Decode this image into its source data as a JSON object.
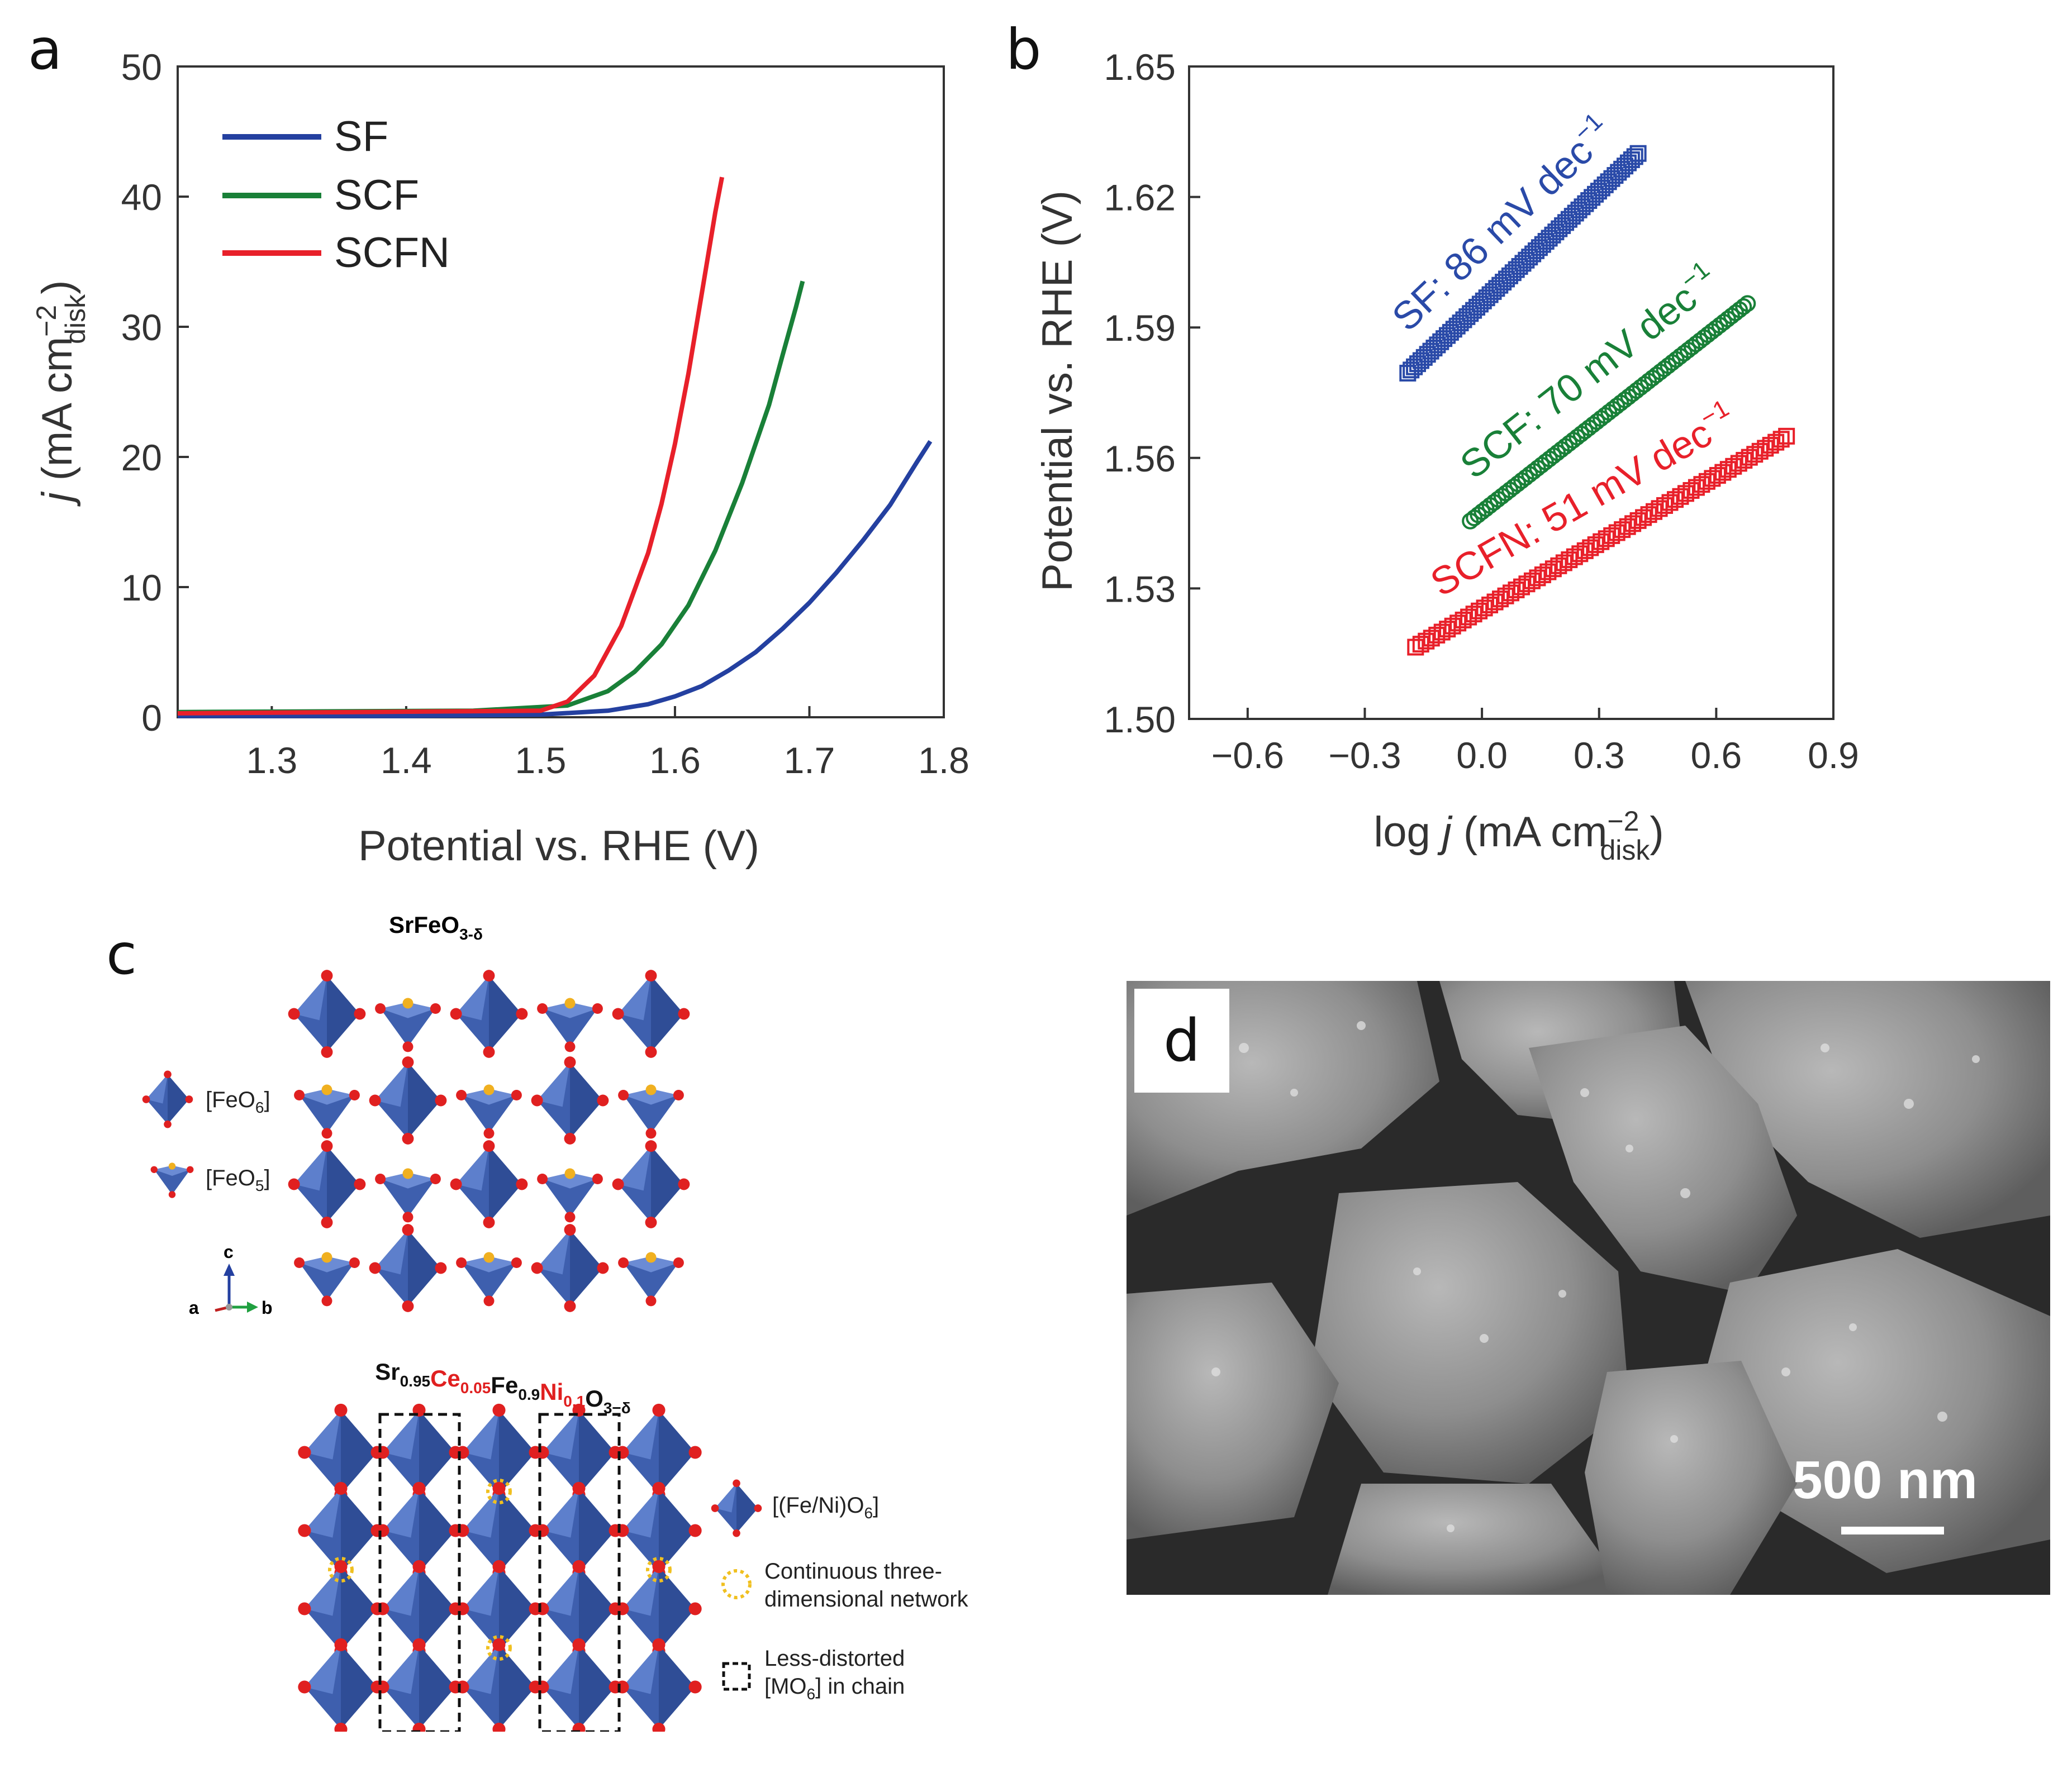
{
  "panels": {
    "a": "a",
    "b": "b",
    "c": "c",
    "d": "d"
  },
  "chart_data": [
    {
      "type": "line",
      "panel": "a",
      "xlabel": "Potential vs. RHE (V)",
      "ylabel_main": "j",
      "ylabel_unit": " (mA cm",
      "ylabel_sup": "−2",
      "ylabel_sub": "disk",
      "ylabel_close": ")",
      "xlim": [
        1.23,
        1.8
      ],
      "ylim": [
        0,
        50
      ],
      "xticks": [
        1.3,
        1.4,
        1.5,
        1.6,
        1.7,
        1.8
      ],
      "xtick_labels": [
        "1.3",
        "1.4",
        "1.5",
        "1.6",
        "1.7",
        "1.8"
      ],
      "yticks": [
        0,
        10,
        20,
        30,
        40,
        50
      ],
      "ytick_labels": [
        "0",
        "10",
        "20",
        "30",
        "40",
        "50"
      ],
      "legend_position": "top-left",
      "series": [
        {
          "name": "SF",
          "color": "#2440a0",
          "x": [
            1.23,
            1.4,
            1.5,
            1.55,
            1.58,
            1.6,
            1.62,
            1.64,
            1.66,
            1.68,
            1.7,
            1.72,
            1.74,
            1.76,
            1.78,
            1.79
          ],
          "y": [
            0.1,
            0.1,
            0.2,
            0.5,
            1.0,
            1.6,
            2.4,
            3.6,
            5.0,
            6.8,
            8.8,
            11.1,
            13.6,
            16.3,
            19.6,
            21.2
          ]
        },
        {
          "name": "SCF",
          "color": "#198038",
          "x": [
            1.23,
            1.45,
            1.52,
            1.55,
            1.57,
            1.59,
            1.61,
            1.63,
            1.65,
            1.67,
            1.68,
            1.69,
            1.695
          ],
          "y": [
            0.4,
            0.5,
            0.9,
            2.0,
            3.5,
            5.6,
            8.6,
            12.8,
            18.0,
            24.0,
            27.8,
            31.5,
            33.5
          ]
        },
        {
          "name": "SCFN",
          "color": "#e8202a",
          "x": [
            1.23,
            1.5,
            1.52,
            1.54,
            1.56,
            1.58,
            1.59,
            1.6,
            1.61,
            1.62,
            1.63,
            1.635
          ],
          "y": [
            0.3,
            0.5,
            1.2,
            3.2,
            7.0,
            12.6,
            16.4,
            21.0,
            26.4,
            32.6,
            38.8,
            41.5
          ]
        }
      ]
    },
    {
      "type": "scatter",
      "panel": "b",
      "xlabel_main": "log ",
      "xlabel_j": "j",
      "xlabel_unit": " (mA cm",
      "xlabel_sup": "−2",
      "xlabel_sub": "disk",
      "xlabel_close": ")",
      "ylabel": "Potential vs. RHE (V)",
      "xlim": [
        -0.75,
        0.9
      ],
      "ylim": [
        1.5,
        1.65
      ],
      "xticks": [
        -0.6,
        -0.3,
        0.0,
        0.3,
        0.6,
        0.9
      ],
      "xtick_labels": [
        "−0.6",
        "−0.3",
        "0.0",
        "0.3",
        "0.6",
        "0.9"
      ],
      "yticks": [
        1.5,
        1.53,
        1.56,
        1.59,
        1.62,
        1.65
      ],
      "ytick_labels": [
        "1.50",
        "1.53",
        "1.56",
        "1.59",
        "1.62",
        "1.65"
      ],
      "series": [
        {
          "color": "#2a4aa8",
          "marker": "square",
          "annotation": "SF: 86 mV dec",
          "annotation_sup": "−1",
          "x_start": -0.19,
          "x_end": 0.4,
          "y_start": 1.5795,
          "y_end": 1.63
        },
        {
          "color": "#198038",
          "marker": "circle",
          "annotation": "SCF: 70 mV dec",
          "annotation_sup": "−1",
          "x_start": -0.03,
          "x_end": 0.68,
          "y_start": 1.5455,
          "y_end": 1.5955
        },
        {
          "color": "#e8202a",
          "marker": "square",
          "annotation": "SCFN: 51 mV dec",
          "annotation_sup": "−1",
          "x_start": -0.17,
          "x_end": 0.78,
          "y_start": 1.5165,
          "y_end": 1.565
        }
      ]
    }
  ],
  "structures": {
    "top_title_main": "SrFeO",
    "top_title_sub": "3-δ",
    "legend_feo6": "[FeO",
    "legend_feo6_sub": "6",
    "legend_feo5": "[FeO",
    "legend_feo5_sub": "5",
    "axes_c": "c",
    "axes_a": "a",
    "axes_b": "b",
    "bottom_title": [
      {
        "t": "Sr",
        "s": "0.95",
        "red": false
      },
      {
        "t": "Ce",
        "s": "0.05",
        "red": true
      },
      {
        "t": "Fe",
        "s": "0.9",
        "red": false
      },
      {
        "t": "Ni",
        "s": "0.1",
        "red": true
      },
      {
        "t": "O",
        "s": "3−δ",
        "red": false
      }
    ],
    "legend_femo6": "[(Fe/Ni)O",
    "legend_femo6_sub": "6",
    "legend_network_1": "Continuous three-",
    "legend_network_2": "dimensional network",
    "legend_distorted_1": "Less-distorted",
    "legend_distorted_2": "[MO",
    "legend_distorted_2_sub": "6",
    "legend_distorted_2_end": "] in chain",
    "colors": {
      "octahedron": "#4a6ab8",
      "oxygen": "#e02020",
      "highlight": "#f0c020"
    }
  },
  "sem": {
    "label": "d",
    "scale": "500 nm"
  }
}
